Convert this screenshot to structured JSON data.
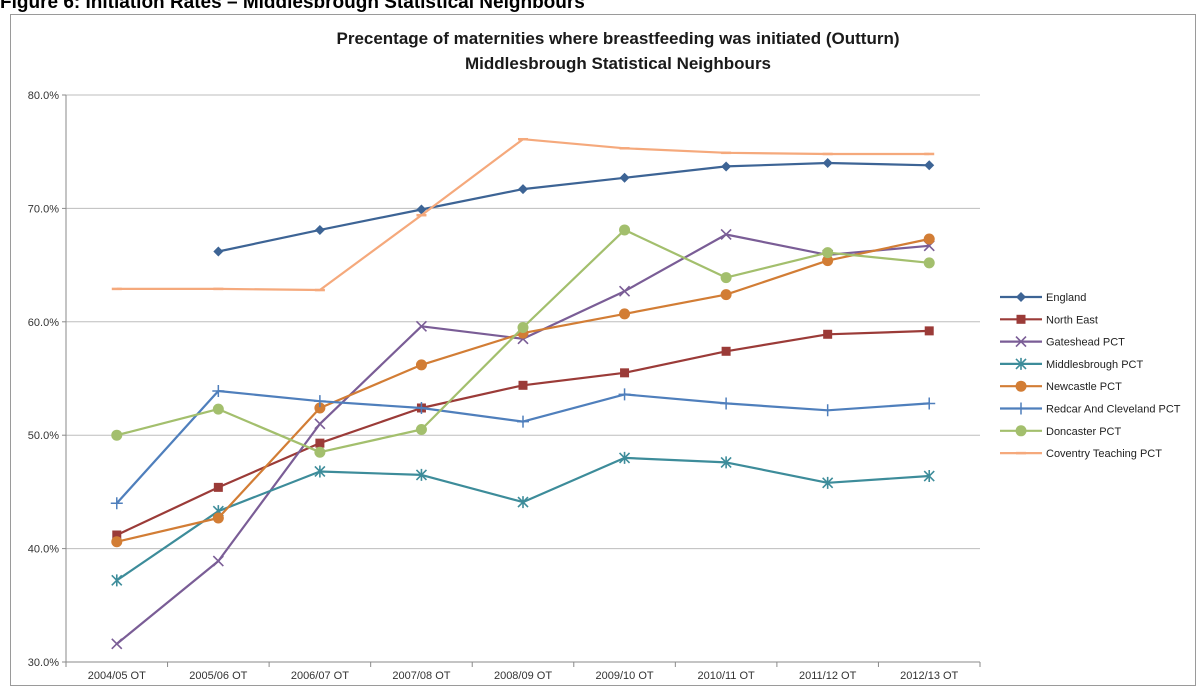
{
  "figure_heading": "Figure 6: Initiation Rates – Middlesbrough Statistical Neighbours",
  "chart_data": {
    "type": "line",
    "title": "Precentage of maternities where breastfeeding was initiated (Outturn)",
    "subtitle": "Middlesbrough Statistical Neighbours",
    "xlabel": "",
    "ylabel": "",
    "categories": [
      "2004/05 OT",
      "2005/06 OT",
      "2006/07 OT",
      "2007/08 OT",
      "2008/09 OT",
      "2009/10 OT",
      "2010/11 OT",
      "2011/12 OT",
      "2012/13 OT"
    ],
    "ylim": [
      30,
      80
    ],
    "yticks": [
      30,
      40,
      50,
      60,
      70,
      80
    ],
    "ytick_labels": [
      "30.0%",
      "40.0%",
      "50.0%",
      "60.0%",
      "70.0%",
      "80.0%"
    ],
    "grid": "horizontal",
    "legend_position": "right",
    "series": [
      {
        "name": "England",
        "color": "#3d6495",
        "marker": "diamond",
        "values": [
          null,
          66.2,
          68.1,
          69.9,
          71.7,
          72.7,
          73.7,
          74.0,
          73.8
        ]
      },
      {
        "name": "North East",
        "color": "#9b3b38",
        "marker": "square",
        "values": [
          41.2,
          45.4,
          49.3,
          52.4,
          54.4,
          55.5,
          57.4,
          58.9,
          59.2
        ]
      },
      {
        "name": "Gateshead PCT",
        "color": "#7a5d96",
        "marker": "x",
        "values": [
          31.6,
          38.9,
          51.0,
          59.6,
          58.5,
          62.7,
          67.7,
          65.9,
          66.7
        ]
      },
      {
        "name": "Middlesbrough PCT",
        "color": "#3d8c9a",
        "marker": "star",
        "values": [
          37.2,
          43.3,
          46.8,
          46.5,
          44.1,
          48.0,
          47.6,
          45.8,
          46.4
        ]
      },
      {
        "name": "Newcastle PCT",
        "color": "#d27d35",
        "marker": "circle",
        "values": [
          40.6,
          42.7,
          52.4,
          56.2,
          59.0,
          60.7,
          62.4,
          65.4,
          67.3
        ]
      },
      {
        "name": "Redcar And Cleveland PCT",
        "color": "#4f7fbc",
        "marker": "plus",
        "values": [
          44.0,
          53.9,
          53.0,
          52.4,
          51.2,
          53.6,
          52.8,
          52.2,
          52.8
        ]
      },
      {
        "name": "Doncaster PCT",
        "color": "#a3bf6d",
        "marker": "circle",
        "values": [
          50.0,
          52.3,
          48.5,
          50.5,
          59.5,
          68.1,
          63.9,
          66.1,
          65.2
        ]
      },
      {
        "name": "Coventry Teaching PCT",
        "color": "#f5a97c",
        "marker": "dash",
        "values": [
          62.9,
          62.9,
          62.8,
          69.4,
          76.1,
          75.3,
          74.9,
          74.8,
          74.8
        ]
      }
    ]
  }
}
